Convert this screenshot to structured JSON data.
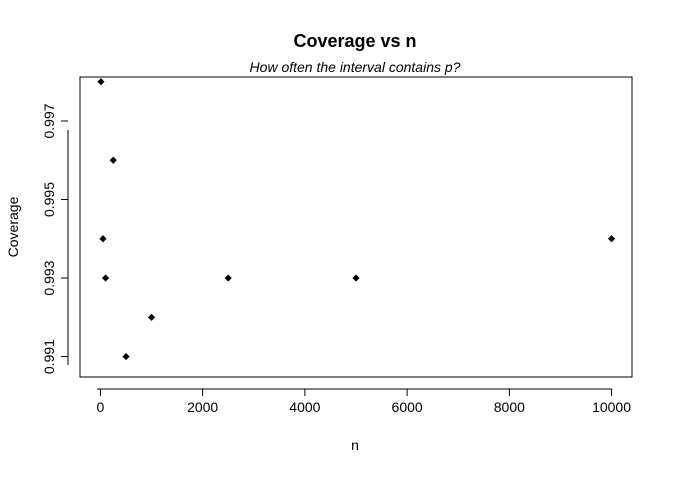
{
  "chart_data": {
    "type": "scatter",
    "title": "Coverage vs n",
    "subtitle": "How often the interval contains p?",
    "xlabel": "n",
    "ylabel": "Coverage",
    "xlim": [
      -400,
      10400
    ],
    "ylim": [
      0.99048,
      0.99812
    ],
    "xticks": [
      {
        "value": 0,
        "label": "0"
      },
      {
        "value": 2000,
        "label": "2000"
      },
      {
        "value": 4000,
        "label": "4000"
      },
      {
        "value": 6000,
        "label": "6000"
      },
      {
        "value": 8000,
        "label": "8000"
      },
      {
        "value": 10000,
        "label": "10000"
      }
    ],
    "yticks": [
      {
        "value": 0.991,
        "label": "0.991"
      },
      {
        "value": 0.993,
        "label": "0.993"
      },
      {
        "value": 0.995,
        "label": "0.995"
      },
      {
        "value": 0.997,
        "label": "0.997"
      }
    ],
    "series": [
      {
        "points": [
          {
            "x": 10,
            "y": 0.998
          },
          {
            "x": 50,
            "y": 0.994
          },
          {
            "x": 100,
            "y": 0.993
          },
          {
            "x": 250,
            "y": 0.996
          },
          {
            "x": 500,
            "y": 0.991
          },
          {
            "x": 1000,
            "y": 0.992
          },
          {
            "x": 2500,
            "y": 0.993
          },
          {
            "x": 5000,
            "y": 0.993
          },
          {
            "x": 10000,
            "y": 0.994
          }
        ]
      }
    ],
    "grid": false,
    "marker": "filled-diamond",
    "colors": {
      "points": "#000000",
      "axes": "#000000",
      "background": "#ffffff"
    }
  }
}
